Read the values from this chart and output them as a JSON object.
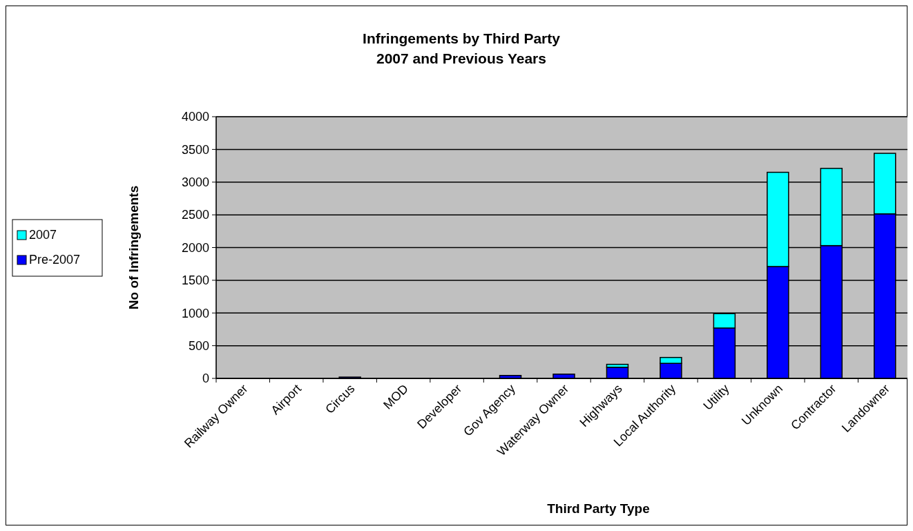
{
  "chart_data": {
    "type": "bar",
    "title": "Infringements by Third Party\n2007 and Previous Years",
    "xlabel": "Third Party Type",
    "ylabel": "No of Infringements",
    "categories": [
      "Railway Owner",
      "Airport",
      "Circus",
      "MOD",
      "Developer",
      "Gov Agency",
      "Waterway Owner",
      "Highways",
      "Local Authority",
      "Utility",
      "Unknown",
      "Contractor",
      "Landowner"
    ],
    "stacked": true,
    "series": [
      {
        "name": "Pre-2007",
        "color": "#0000ff",
        "values": [
          0,
          0,
          20,
          0,
          0,
          45,
          65,
          170,
          230,
          770,
          1710,
          2030,
          2515
        ]
      },
      {
        "name": "2007",
        "color": "#00ffff",
        "values": [
          0,
          0,
          0,
          0,
          0,
          0,
          0,
          45,
          90,
          220,
          1440,
          1180,
          925
        ]
      }
    ],
    "ylim": [
      0,
      4000
    ],
    "yticks": [
      0,
      500,
      1000,
      1500,
      2000,
      2500,
      3000,
      3500,
      4000
    ],
    "grid": "y",
    "legend": "left"
  }
}
